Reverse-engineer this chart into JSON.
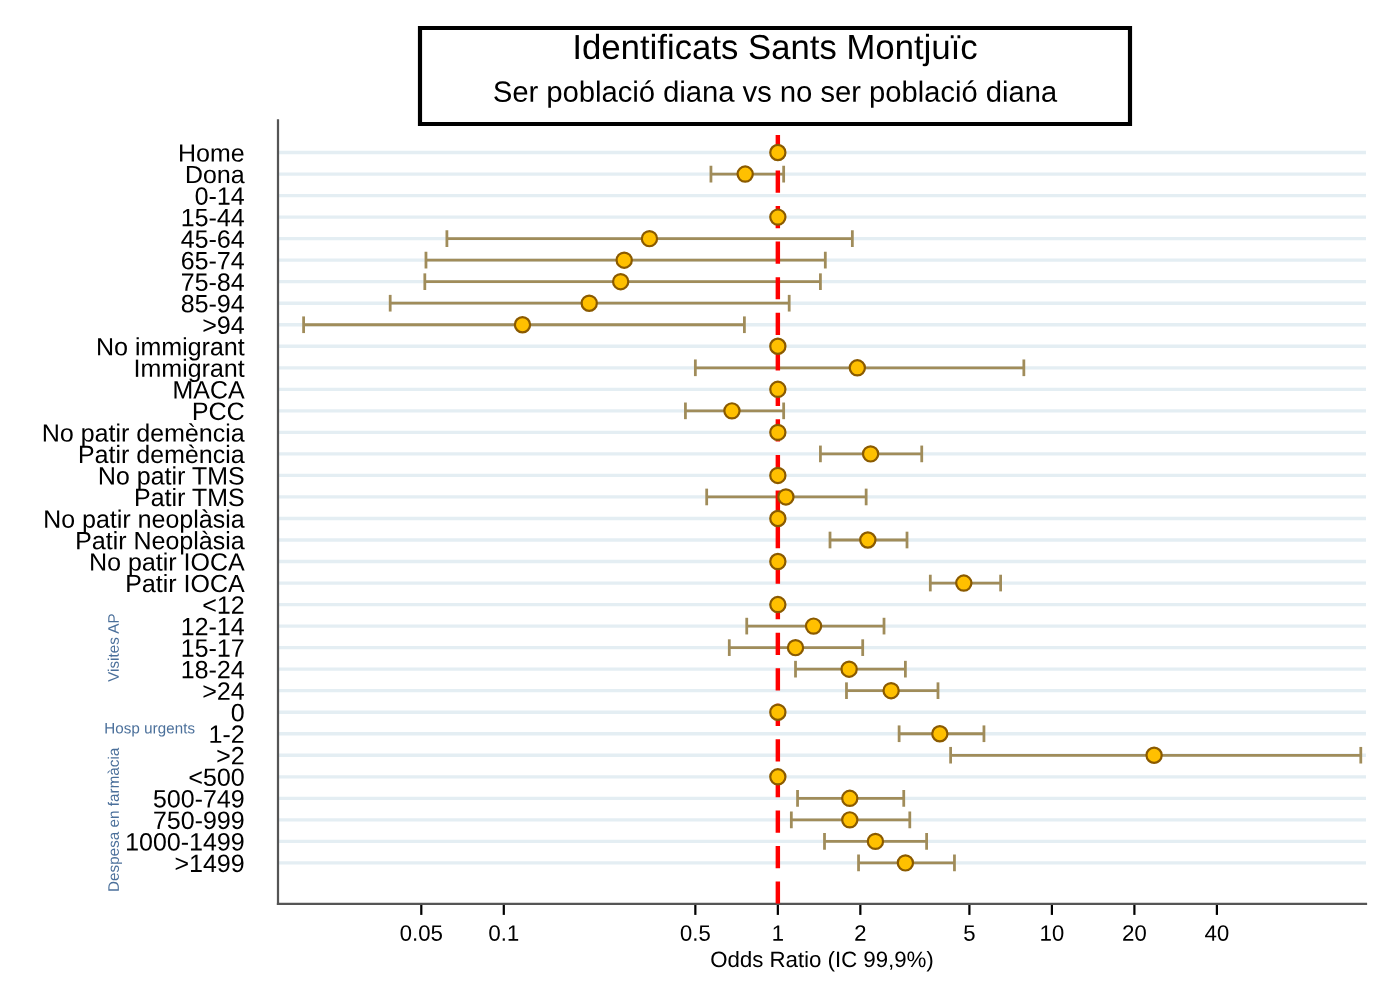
{
  "chart_data": {
    "type": "scatter",
    "orientation": "horizontal",
    "title": "Identificats Sants Montjuïc",
    "subtitle": "Ser població diana vs no ser població diana",
    "xlabel": "Odds Ratio (IC 99,9%)",
    "categories": [
      "Home",
      "Dona",
      "0-14",
      "15-44",
      "45-64",
      "65-74",
      "75-84",
      "85-94",
      ">94",
      "No immigrant",
      "Immigrant",
      "MACA",
      "PCC",
      "No patir demència",
      "Patir demència",
      "No patir TMS",
      "Patir TMS",
      "No patir neoplàsia",
      "Patir Neoplàsia",
      "No patir IOCA",
      "Patir IOCA",
      "<12",
      "12-14",
      "15-17",
      "18-24",
      ">24",
      "0",
      "1-2",
      ">2",
      "<500",
      "500-749",
      "750-999",
      "1000-1499",
      ">1499"
    ],
    "values": [
      1,
      0.76,
      null,
      1,
      0.34,
      0.275,
      0.267,
      0.205,
      0.117,
      1,
      1.95,
      1,
      0.68,
      1,
      2.18,
      1,
      1.07,
      1,
      2.13,
      1,
      4.77,
      1,
      1.35,
      1.16,
      1.82,
      2.59,
      1,
      3.9,
      23.6,
      1,
      1.83,
      1.83,
      2.27,
      2.92
    ],
    "errors": [
      null,
      [
        0.57,
        1.05
      ],
      null,
      null,
      [
        0.062,
        1.87
      ],
      [
        0.052,
        1.49
      ],
      [
        0.0515,
        1.43
      ],
      [
        0.0385,
        1.1
      ],
      [
        0.0186,
        0.755
      ],
      null,
      [
        0.5,
        7.9
      ],
      null,
      [
        0.46,
        1.05
      ],
      null,
      [
        1.43,
        3.35
      ],
      null,
      [
        0.55,
        2.1
      ],
      null,
      [
        1.55,
        2.96
      ],
      null,
      [
        3.6,
        6.5
      ],
      null,
      [
        0.77,
        2.44
      ],
      [
        0.665,
        2.04
      ],
      [
        1.16,
        2.92
      ],
      [
        1.78,
        3.84
      ],
      null,
      [
        2.77,
        5.65
      ],
      [
        4.27,
        134
      ],
      null,
      [
        1.18,
        2.88
      ],
      [
        1.12,
        3.03
      ],
      [
        1.48,
        3.49
      ],
      [
        1.97,
        4.41
      ]
    ],
    "color": "#ffc000",
    "log": "x",
    "xlim": [
      0.015,
      140
    ],
    "xticks": [
      0.05,
      0.1,
      0.5,
      1,
      2,
      5,
      10,
      20,
      40
    ],
    "grid": "y",
    "marker": "circle",
    "ref_lines": [
      {
        "axis": "x",
        "value": 1,
        "color": "#ff0000",
        "line_style": "dashed"
      }
    ],
    "annotations": [
      "Visites AP",
      "Hosp urgents",
      "Despesa en farmàcia"
    ]
  }
}
